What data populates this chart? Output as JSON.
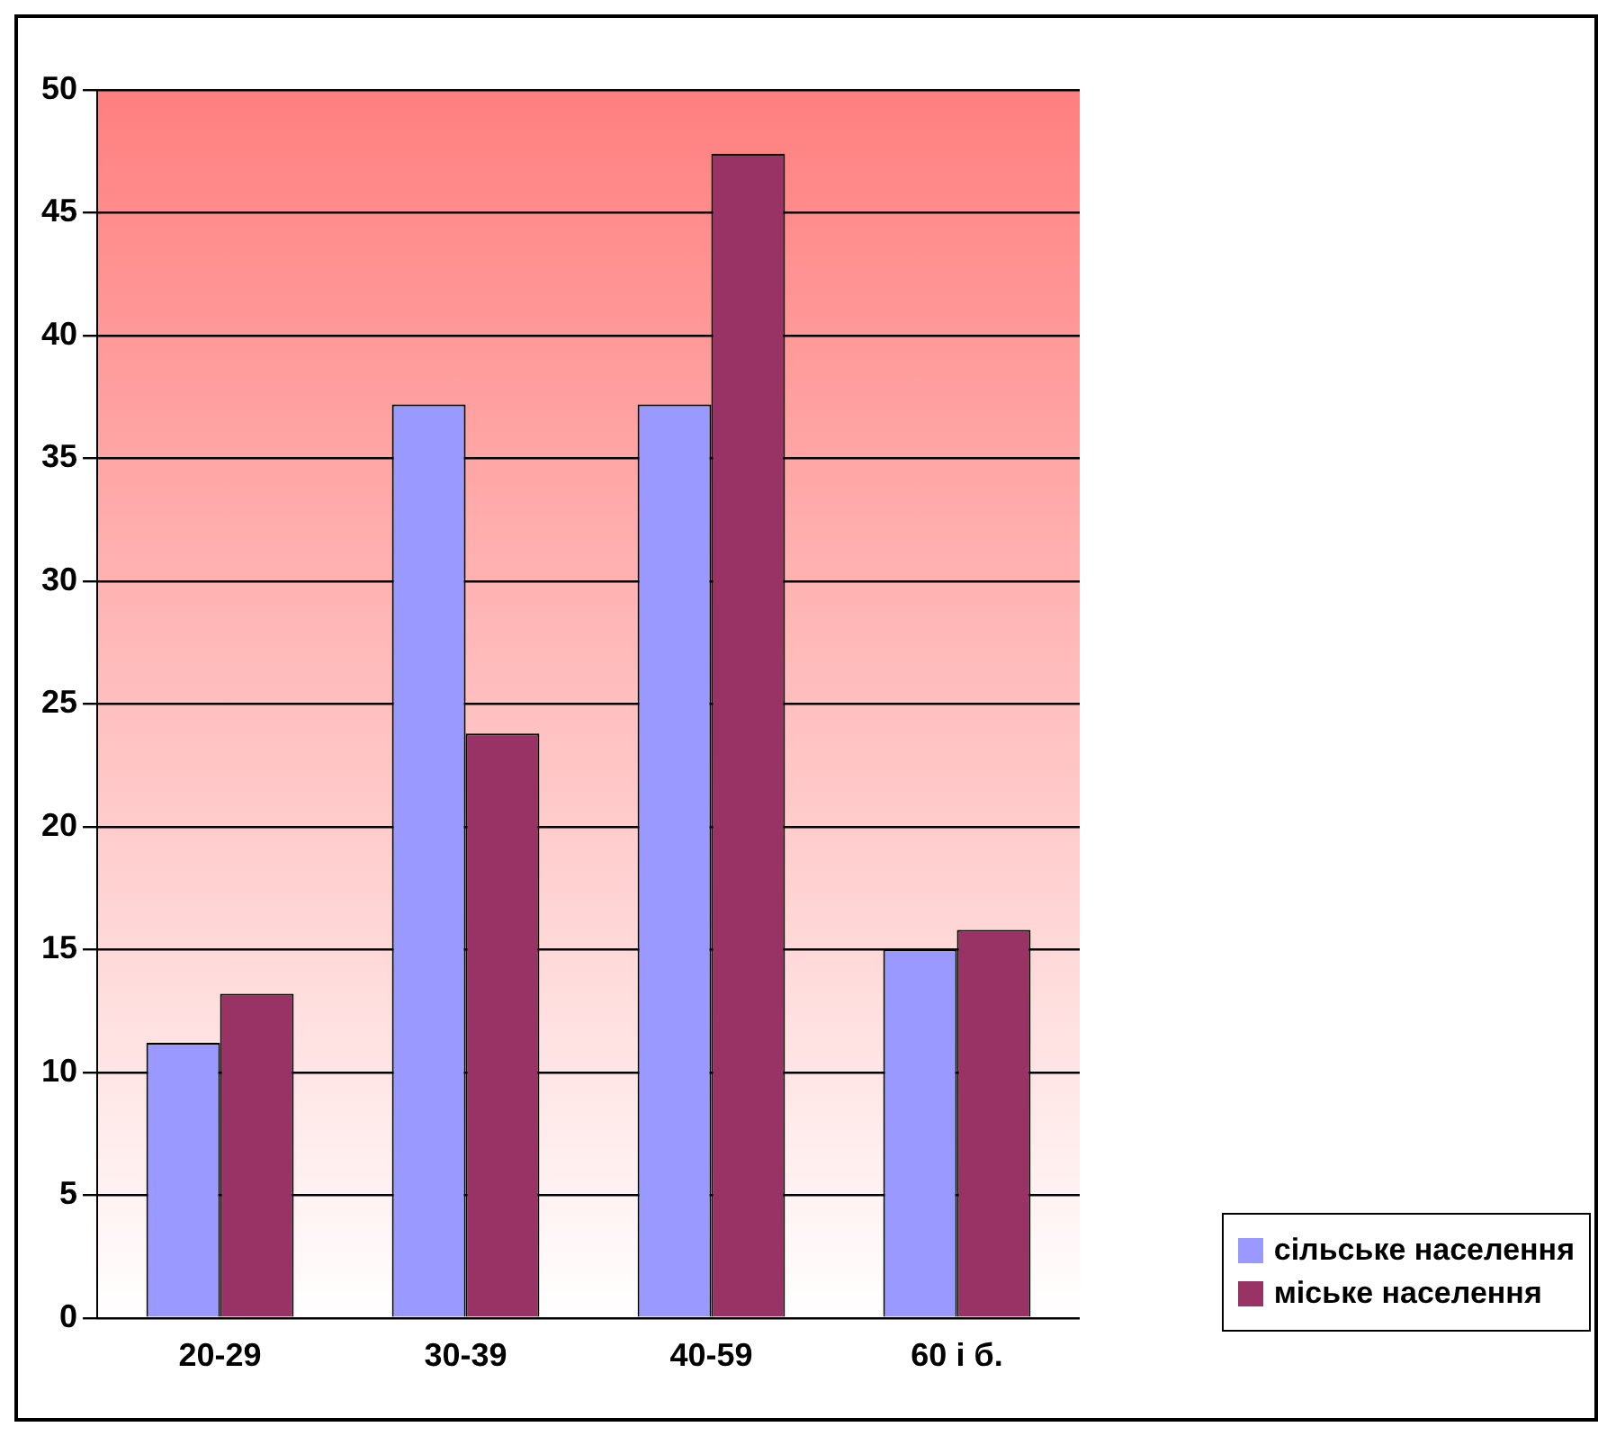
{
  "chart_data": {
    "type": "bar",
    "categories": [
      "20-29",
      "30-39",
      "40-59",
      "60 і б."
    ],
    "series": [
      {
        "name": "сільське населення",
        "color": "#9999ff",
        "values": [
          11.2,
          37.2,
          37.2,
          15
        ]
      },
      {
        "name": "міське населення",
        "color": "#993366",
        "values": [
          13.2,
          23.8,
          47.4,
          15.8
        ]
      }
    ],
    "ylim": [
      0,
      50
    ],
    "yticks": [
      0,
      5,
      10,
      15,
      20,
      25,
      30,
      35,
      40,
      45,
      50
    ],
    "grid": "y",
    "legend": "bottom right"
  }
}
